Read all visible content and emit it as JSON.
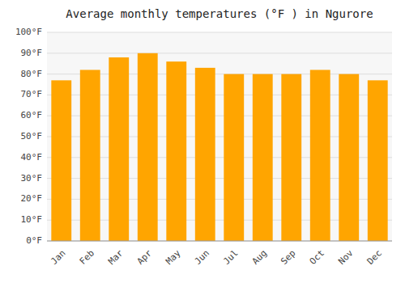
{
  "chart_data": {
    "type": "bar",
    "title": "Average monthly temperatures (°F ) in Ngurore",
    "categories": [
      "Jan",
      "Feb",
      "Mar",
      "Apr",
      "May",
      "Jun",
      "Jul",
      "Aug",
      "Sep",
      "Oct",
      "Nov",
      "Dec"
    ],
    "values": [
      77,
      82,
      88,
      90,
      86,
      83,
      80,
      80,
      80,
      82,
      80,
      77
    ],
    "color": "#FFA500",
    "ylim": [
      0,
      100
    ],
    "yticks": [
      {
        "value": 0,
        "label": "0°F"
      },
      {
        "value": 10,
        "label": "10°F"
      },
      {
        "value": 20,
        "label": "20°F"
      },
      {
        "value": 30,
        "label": "30°F"
      },
      {
        "value": 40,
        "label": "40°F"
      },
      {
        "value": 50,
        "label": "50°F"
      },
      {
        "value": 60,
        "label": "60°F"
      },
      {
        "value": 70,
        "label": "70°F"
      },
      {
        "value": 80,
        "label": "80°F"
      },
      {
        "value": 90,
        "label": "90°F"
      },
      {
        "value": 100,
        "label": "100°F"
      }
    ],
    "grid": true
  }
}
